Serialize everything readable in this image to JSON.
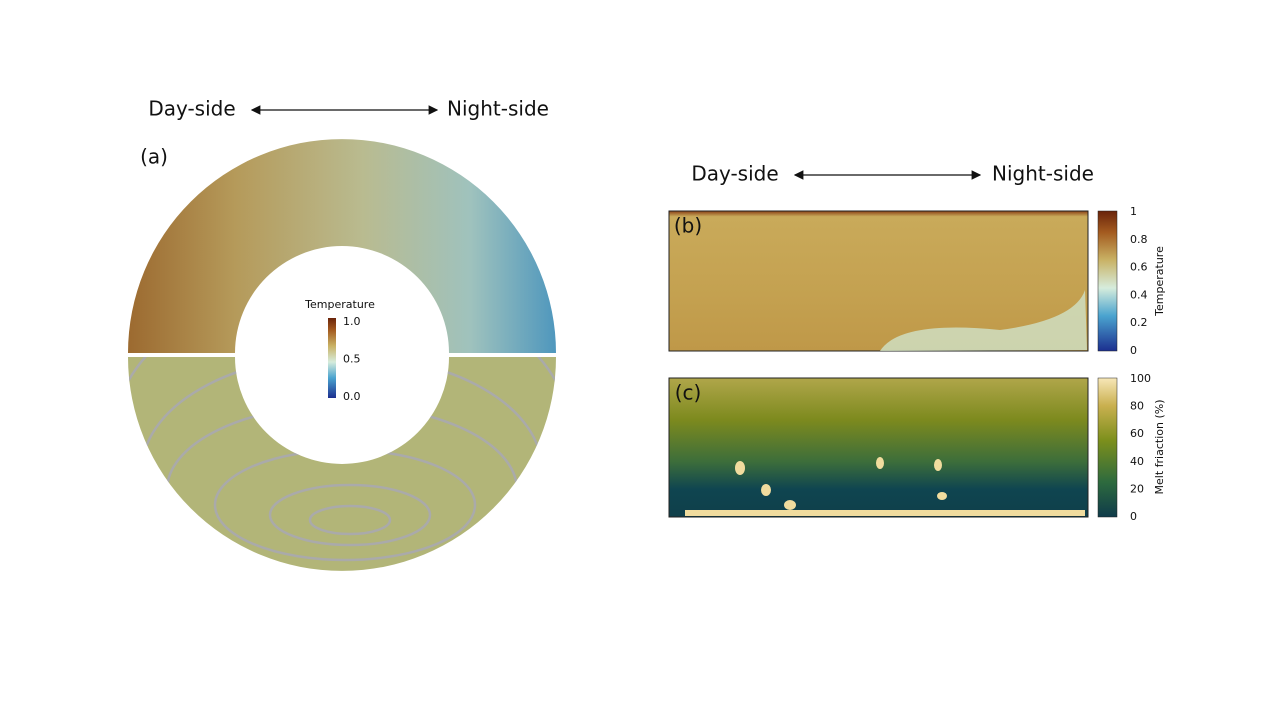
{
  "panel_a": {
    "left_label": "Day-side",
    "right_label": "Night-side",
    "tag": "(a)",
    "colorbar": {
      "title": "Temperature",
      "ticks": [
        "1.0",
        "0.5",
        "0.0"
      ]
    }
  },
  "panel_bc": {
    "left_label": "Day-side",
    "right_label": "Night-side"
  },
  "panel_b": {
    "tag": "(b)",
    "colorbar": {
      "title": "Temperature",
      "ticks": [
        "1",
        "0.8",
        "0.6",
        "0.4",
        "0.2",
        "0"
      ]
    }
  },
  "panel_c": {
    "tag": "(c)",
    "colorbar": {
      "title": "Melt friaction (%)",
      "ticks": [
        "100",
        "80",
        "60",
        "40",
        "20",
        "0"
      ]
    }
  }
}
